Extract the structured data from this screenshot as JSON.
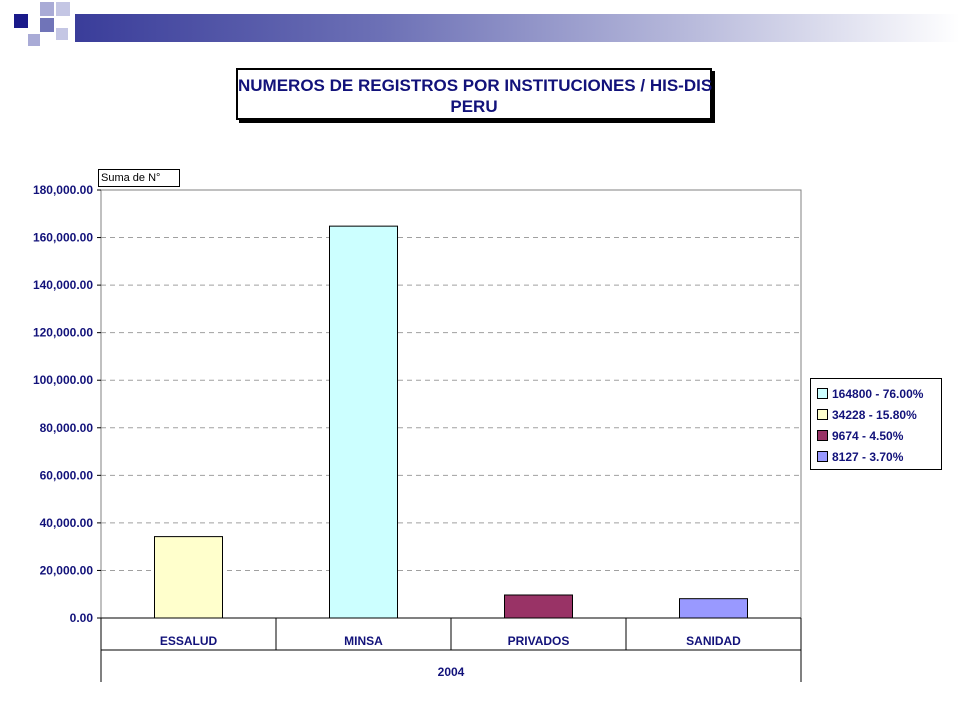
{
  "colors": {
    "text": "#12127a",
    "header_band_start": "#3a3d9a",
    "header_square_dark": "#1a1a8a",
    "header_square_light": "#a9abd6"
  },
  "title": {
    "line1": "NUMEROS DE REGISTROS POR INSTITUCIONES / HIS-DIS",
    "line2": "PERU"
  },
  "measure_label": "Suma de N°",
  "chart_data": {
    "type": "bar",
    "categories": [
      "ESSALUD",
      "MINSA",
      "PRIVADOS",
      "SANIDAD"
    ],
    "group_label": "2004",
    "values": [
      34228,
      164800,
      9674,
      8127
    ],
    "bar_colors": [
      "#ffffcc",
      "#ccffff",
      "#993366",
      "#9999ff"
    ],
    "ylim": [
      0,
      180000
    ],
    "yticks": [
      0,
      20000,
      40000,
      60000,
      80000,
      100000,
      120000,
      140000,
      160000,
      180000
    ],
    "ytick_labels": [
      "0.00",
      "20,000.00",
      "40,000.00",
      "60,000.00",
      "80,000.00",
      "100,000.00",
      "120,000.00",
      "140,000.00",
      "160,000.00",
      "180,000.00"
    ],
    "grid": true,
    "legend_position": "right",
    "legend": [
      {
        "label": "164800 - 76.00%",
        "color": "#ccffff"
      },
      {
        "label": "34228 - 15.80%",
        "color": "#ffffcc"
      },
      {
        "label": "9674 - 4.50%",
        "color": "#993366"
      },
      {
        "label": "8127 - 3.70%",
        "color": "#9999ff"
      }
    ]
  }
}
